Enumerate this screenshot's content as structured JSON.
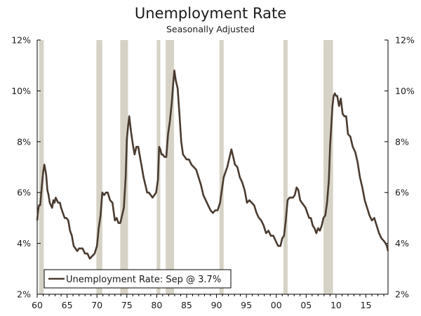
{
  "chart_data": {
    "type": "line",
    "title": "Unemployment Rate",
    "subtitle": "Seasonally Adjusted",
    "xlabel": "",
    "ylabel": "",
    "x_ticks": [
      "60",
      "65",
      "70",
      "75",
      "80",
      "85",
      "90",
      "95",
      "00",
      "05",
      "10",
      "15"
    ],
    "x_tick_values": [
      1960,
      1965,
      1970,
      1975,
      1980,
      1985,
      1990,
      1995,
      2000,
      2005,
      2010,
      2015
    ],
    "y_ticks_left": [
      "2%",
      "4%",
      "6%",
      "8%",
      "10%",
      "12%"
    ],
    "y_ticks_right": [
      "2%",
      "4%",
      "6%",
      "8%",
      "10%",
      "12%"
    ],
    "y_tick_values": [
      2,
      4,
      6,
      8,
      10,
      12
    ],
    "xlim": [
      1960,
      2018.7
    ],
    "ylim": [
      2,
      12
    ],
    "grid": false,
    "legend": {
      "position": "bottom-left",
      "entries": [
        "Unemployment Rate: Sep @ 3.7%"
      ]
    },
    "colors": {
      "line": "#4a3b30",
      "recession": "#d6d3c6",
      "axis": "#000000"
    },
    "recessions": [
      [
        1960.3,
        1961.1
      ],
      [
        1969.9,
        1970.9
      ],
      [
        1973.9,
        1975.2
      ],
      [
        1980.0,
        1980.6
      ],
      [
        1981.5,
        1982.9
      ],
      [
        1990.5,
        1991.2
      ],
      [
        2001.2,
        2001.9
      ],
      [
        2007.9,
        2009.5
      ]
    ],
    "series": [
      {
        "name": "Unemployment Rate: Sep @ 3.7%",
        "x": [
          1960.0,
          1960.15,
          1960.3,
          1960.5,
          1960.8,
          1961.0,
          1961.2,
          1961.35,
          1961.5,
          1961.7,
          1961.9,
          1962.1,
          1962.3,
          1962.5,
          1962.7,
          1962.9,
          1963.1,
          1963.3,
          1963.5,
          1963.8,
          1964.0,
          1964.3,
          1964.6,
          1964.9,
          1965.2,
          1965.5,
          1965.8,
          1966.1,
          1966.4,
          1966.7,
          1967.0,
          1967.3,
          1967.6,
          1968.0,
          1968.4,
          1968.8,
          1969.2,
          1969.6,
          1970.0,
          1970.3,
          1970.6,
          1970.9,
          1971.2,
          1971.5,
          1971.8,
          1972.2,
          1972.6,
          1973.0,
          1973.3,
          1973.6,
          1973.9,
          1974.2,
          1974.5,
          1974.8,
          1975.0,
          1975.2,
          1975.4,
          1975.7,
          1976.0,
          1976.3,
          1976.6,
          1976.9,
          1977.2,
          1977.5,
          1977.8,
          1978.1,
          1978.4,
          1978.7,
          1979.0,
          1979.3,
          1979.6,
          1979.9,
          1980.2,
          1980.4,
          1980.6,
          1980.8,
          1981.0,
          1981.3,
          1981.6,
          1981.9,
          1982.2,
          1982.5,
          1982.8,
          1982.95,
          1983.2,
          1983.5,
          1983.8,
          1984.1,
          1984.4,
          1984.7,
          1985.0,
          1985.4,
          1985.8,
          1986.2,
          1986.6,
          1987.0,
          1987.4,
          1987.8,
          1988.2,
          1988.6,
          1989.0,
          1989.4,
          1989.8,
          1990.2,
          1990.6,
          1990.9,
          1991.2,
          1991.5,
          1991.8,
          1992.1,
          1992.5,
          1992.8,
          1993.1,
          1993.5,
          1993.9,
          1994.3,
          1994.7,
          1995.1,
          1995.5,
          1995.9,
          1996.3,
          1996.7,
          1997.1,
          1997.5,
          1997.9,
          1998.3,
          1998.7,
          1999.1,
          1999.5,
          1999.9,
          2000.3,
          2000.7,
          2001.0,
          2001.3,
          2001.6,
          2001.9,
          2002.2,
          2002.5,
          2002.8,
          2003.1,
          2003.4,
          2003.7,
          2004.0,
          2004.3,
          2004.6,
          2004.9,
          2005.2,
          2005.5,
          2005.8,
          2006.1,
          2006.4,
          2006.7,
          2007.0,
          2007.3,
          2007.6,
          2007.9,
          2008.2,
          2008.5,
          2008.8,
          2009.0,
          2009.2,
          2009.4,
          2009.6,
          2009.8,
          2010.0,
          2010.2,
          2010.5,
          2010.8,
          2011.1,
          2011.4,
          2011.7,
          2012.0,
          2012.4,
          2012.8,
          2013.2,
          2013.6,
          2014.0,
          2014.4,
          2014.8,
          2015.2,
          2015.6,
          2016.0,
          2016.4,
          2016.8,
          2017.2,
          2017.6,
          2018.0,
          2018.3,
          2018.5,
          2018.7
        ],
        "values": [
          4.9,
          5.3,
          5.5,
          5.5,
          6.3,
          6.8,
          7.1,
          6.9,
          6.7,
          6.1,
          5.9,
          5.6,
          5.5,
          5.4,
          5.7,
          5.6,
          5.8,
          5.7,
          5.6,
          5.6,
          5.4,
          5.2,
          5.0,
          5.0,
          4.9,
          4.5,
          4.3,
          3.9,
          3.8,
          3.7,
          3.8,
          3.8,
          3.8,
          3.6,
          3.6,
          3.4,
          3.5,
          3.6,
          3.9,
          4.6,
          5.1,
          6.0,
          5.9,
          6.0,
          6.0,
          5.7,
          5.6,
          4.9,
          5.0,
          4.8,
          4.8,
          5.1,
          5.4,
          6.6,
          8.1,
          8.6,
          9.0,
          8.4,
          7.9,
          7.5,
          7.8,
          7.8,
          7.4,
          7.0,
          6.6,
          6.3,
          6.0,
          6.0,
          5.9,
          5.8,
          5.9,
          6.0,
          6.5,
          7.8,
          7.7,
          7.5,
          7.5,
          7.4,
          7.4,
          8.3,
          8.8,
          9.5,
          10.4,
          10.8,
          10.4,
          10.1,
          9.1,
          8.0,
          7.5,
          7.4,
          7.3,
          7.3,
          7.1,
          7.0,
          6.9,
          6.6,
          6.3,
          5.9,
          5.7,
          5.5,
          5.3,
          5.2,
          5.3,
          5.3,
          5.6,
          6.1,
          6.6,
          6.8,
          7.0,
          7.3,
          7.7,
          7.4,
          7.1,
          7.0,
          6.6,
          6.4,
          6.1,
          5.6,
          5.7,
          5.6,
          5.5,
          5.2,
          5.0,
          4.9,
          4.7,
          4.4,
          4.5,
          4.3,
          4.3,
          4.1,
          3.9,
          3.9,
          4.2,
          4.3,
          4.9,
          5.7,
          5.8,
          5.8,
          5.8,
          5.9,
          6.2,
          6.1,
          5.7,
          5.6,
          5.5,
          5.4,
          5.2,
          5.0,
          5.0,
          4.7,
          4.6,
          4.4,
          4.6,
          4.5,
          4.7,
          5.0,
          5.1,
          5.6,
          6.5,
          7.8,
          8.6,
          9.4,
          9.8,
          9.9,
          9.8,
          9.8,
          9.4,
          9.7,
          9.1,
          9.0,
          9.0,
          8.3,
          8.2,
          7.8,
          7.6,
          7.2,
          6.6,
          6.2,
          5.7,
          5.4,
          5.1,
          4.9,
          5.0,
          4.7,
          4.4,
          4.2,
          4.1,
          4.0,
          3.9,
          3.7
        ]
      }
    ]
  }
}
